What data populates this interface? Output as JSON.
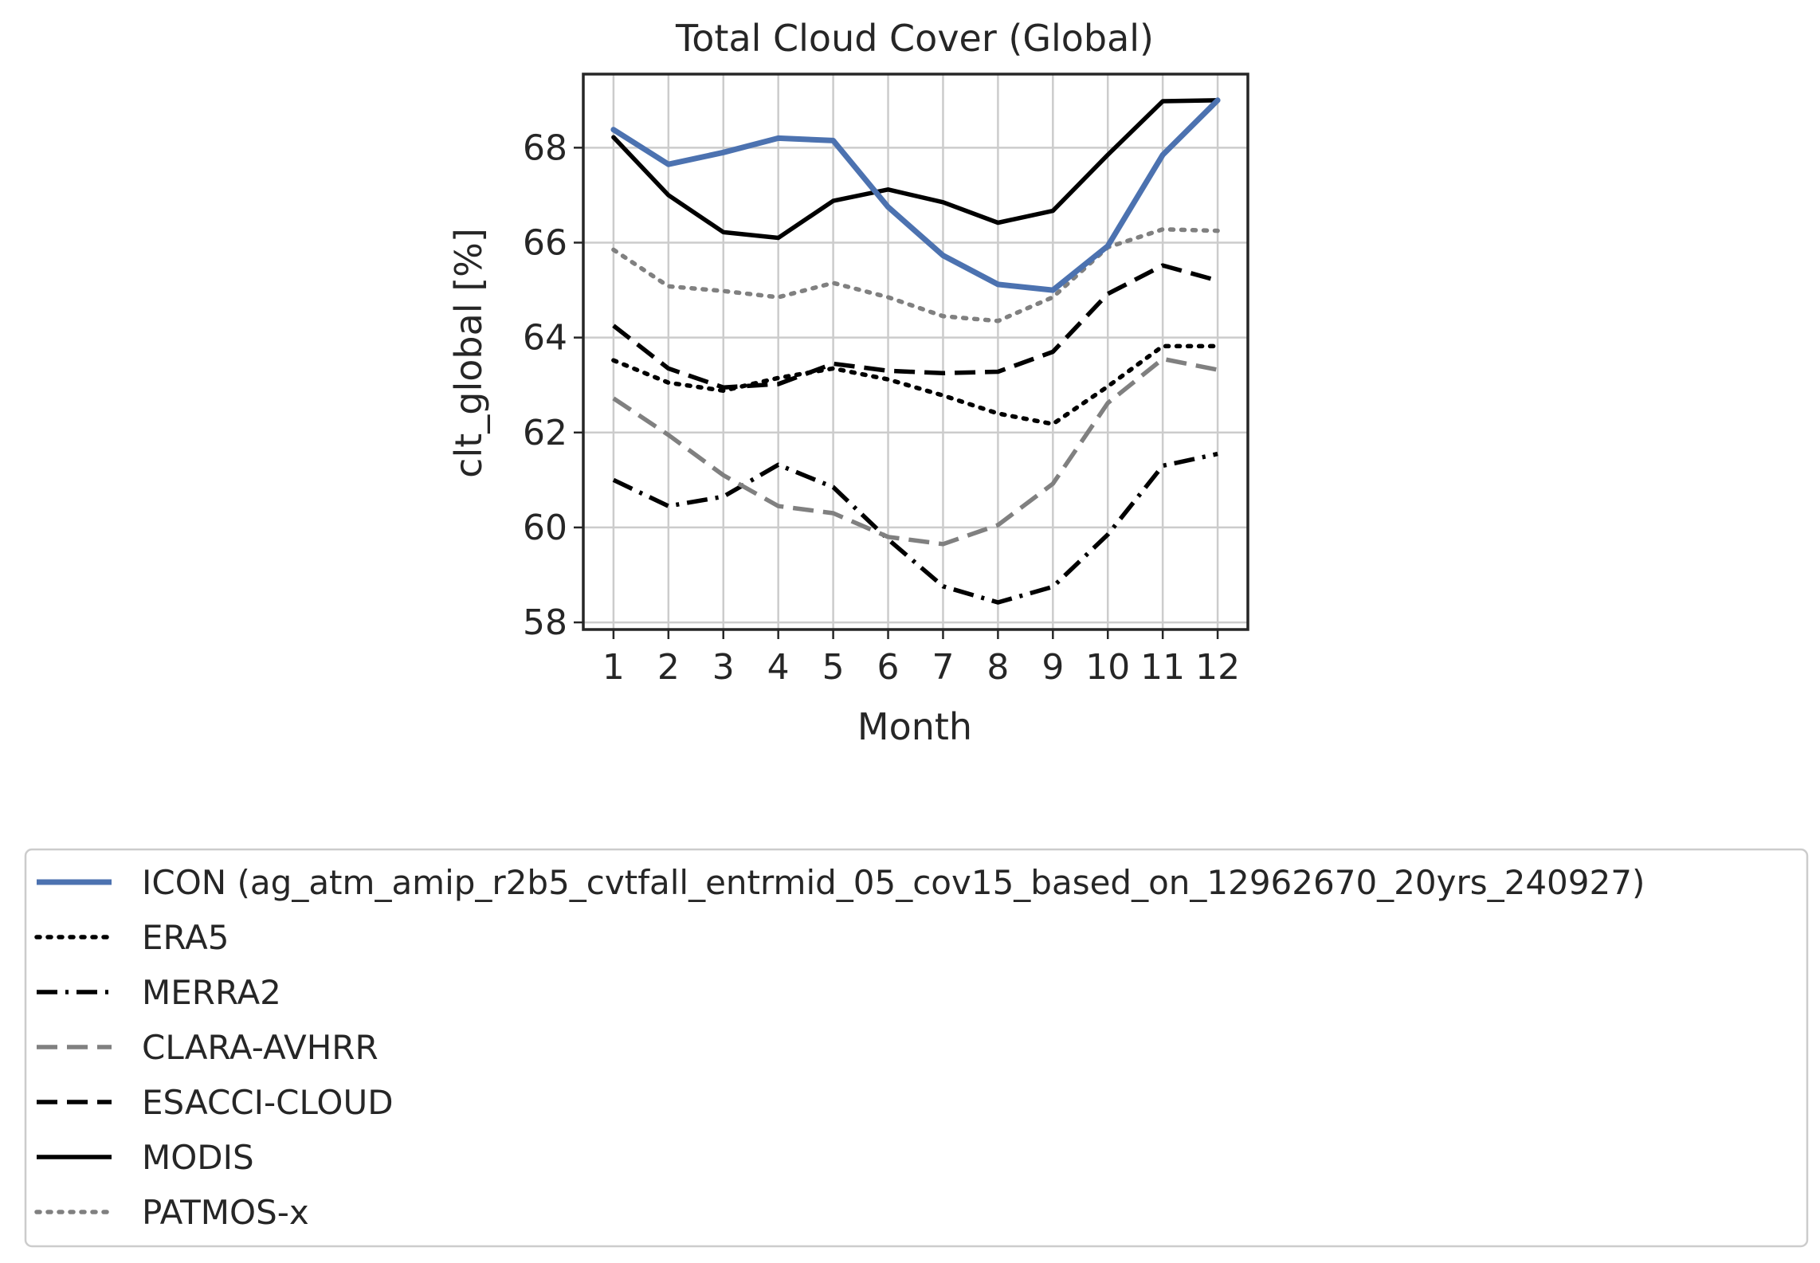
{
  "chart_data": {
    "type": "line",
    "title": "Total Cloud Cover (Global)",
    "xlabel": "Month",
    "ylabel": "clt_global [%]",
    "xlim": [
      0.45,
      12.55
    ],
    "ylim": [
      57.85,
      69.55
    ],
    "xticks": [
      1,
      2,
      3,
      4,
      5,
      6,
      7,
      8,
      9,
      10,
      11,
      12
    ],
    "yticks": [
      58,
      60,
      62,
      64,
      66,
      68
    ],
    "grid": true,
    "legend_position": "below",
    "x": [
      1,
      2,
      3,
      4,
      5,
      6,
      7,
      8,
      9,
      10,
      11,
      12
    ],
    "series": [
      {
        "name": "ICON (ag_atm_amip_r2b5_cvtfall_entrmid_05_cov15_based_on_12962670_20yrs_240927)",
        "color": "#4c72b0",
        "style": "solid",
        "bold": true,
        "values": [
          68.38,
          67.65,
          67.9,
          68.2,
          68.15,
          66.75,
          65.73,
          65.12,
          65.0,
          65.93,
          67.85,
          69.0
        ]
      },
      {
        "name": "ERA5",
        "color": "#000000",
        "style": "dotted",
        "values": [
          63.52,
          63.05,
          62.88,
          63.15,
          63.35,
          63.12,
          62.78,
          62.4,
          62.18,
          62.97,
          63.82,
          63.82
        ]
      },
      {
        "name": "MERRA2",
        "color": "#000000",
        "style": "dashdot",
        "values": [
          61.0,
          60.45,
          60.65,
          61.32,
          60.85,
          59.75,
          58.76,
          58.42,
          58.75,
          59.85,
          61.3,
          61.55
        ]
      },
      {
        "name": "CLARA-AVHRR",
        "color": "#808080",
        "style": "dashed",
        "values": [
          62.72,
          61.95,
          61.1,
          60.45,
          60.3,
          59.8,
          59.65,
          60.05,
          60.92,
          62.62,
          63.55,
          63.32
        ]
      },
      {
        "name": "ESACCI-CLOUD",
        "color": "#000000",
        "style": "dashed",
        "values": [
          64.25,
          63.35,
          62.95,
          63.02,
          63.45,
          63.3,
          63.25,
          63.28,
          63.7,
          64.92,
          65.52,
          65.2
        ]
      },
      {
        "name": "MODIS",
        "color": "#000000",
        "style": "solid",
        "values": [
          68.22,
          67.0,
          66.22,
          66.1,
          66.88,
          67.12,
          66.85,
          66.42,
          66.67,
          67.85,
          68.98,
          69.0
        ]
      },
      {
        "name": "PATMOS-x",
        "color": "#808080",
        "style": "dotted",
        "values": [
          65.85,
          65.08,
          64.98,
          64.85,
          65.15,
          64.85,
          64.45,
          64.35,
          64.85,
          65.9,
          66.28,
          66.25
        ]
      }
    ]
  }
}
